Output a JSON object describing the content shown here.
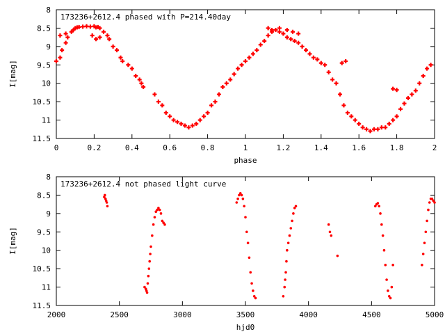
{
  "chart_data": [
    {
      "type": "scatter",
      "title": "173236+2612.4 phased with P=214.40day",
      "xlabel": "phase",
      "ylabel": "I[mag]",
      "xlim": [
        0,
        2
      ],
      "ylim": [
        11.5,
        8
      ],
      "y_inverted": true,
      "xticks": [
        "0",
        "0.2",
        "0.4",
        "0.6",
        "0.8",
        "1",
        "1.2",
        "1.4",
        "1.6",
        "1.8",
        "2"
      ],
      "yticks": [
        "8",
        "8.5",
        "9",
        "9.5",
        "10",
        "10.5",
        "11",
        "11.5"
      ],
      "grid": false,
      "color": "#ff0000",
      "marker": "plus",
      "series": [
        {
          "x": [
            0.0,
            0.02,
            0.03,
            0.05,
            0.06,
            0.08,
            0.09,
            0.1,
            0.11,
            0.12,
            0.14,
            0.16,
            0.18,
            0.2,
            0.21,
            0.22,
            0.23,
            0.25,
            0.27,
            0.28,
            0.3,
            0.32,
            0.34,
            0.35,
            0.38,
            0.4,
            0.42,
            0.44,
            0.45,
            0.46,
            0.52,
            0.54,
            0.56,
            0.58,
            0.6,
            0.62,
            0.64,
            0.66,
            0.68,
            0.7,
            0.72,
            0.74,
            0.76,
            0.78,
            0.8,
            0.82,
            0.84,
            0.86,
            0.88,
            0.9,
            0.92,
            0.94,
            0.96,
            0.98,
            1.0,
            1.02,
            1.04,
            1.06,
            1.08,
            1.1,
            1.12,
            1.14,
            1.16,
            1.18,
            1.2,
            1.22,
            1.24,
            1.26,
            1.28,
            1.3,
            1.32,
            1.34,
            1.36,
            1.38,
            1.4,
            1.42,
            1.44,
            1.46,
            1.48,
            1.5,
            1.52,
            1.54,
            1.56,
            1.58,
            1.6,
            1.62,
            1.64,
            1.66,
            1.68,
            1.7,
            1.72,
            1.74,
            1.76,
            1.78,
            1.8,
            1.82,
            1.84,
            1.86,
            1.88,
            1.9,
            1.92,
            1.94,
            1.96,
            1.98,
            1.12,
            1.14,
            1.18,
            1.22,
            1.25,
            1.28,
            0.02,
            0.05,
            0.19,
            0.21,
            0.23,
            1.51,
            1.53,
            1.78,
            1.8
          ],
          "y": [
            9.4,
            9.3,
            9.1,
            8.9,
            8.75,
            8.6,
            8.55,
            8.5,
            8.48,
            8.47,
            8.46,
            8.45,
            8.46,
            8.45,
            8.48,
            8.47,
            8.5,
            8.6,
            8.7,
            8.8,
            9.0,
            9.1,
            9.3,
            9.4,
            9.5,
            9.6,
            9.8,
            9.9,
            10.0,
            10.1,
            10.3,
            10.5,
            10.6,
            10.8,
            10.9,
            11.0,
            11.05,
            11.1,
            11.15,
            11.2,
            11.15,
            11.1,
            11.0,
            10.9,
            10.8,
            10.6,
            10.5,
            10.3,
            10.1,
            10.0,
            9.9,
            9.75,
            9.6,
            9.5,
            9.4,
            9.3,
            9.2,
            9.1,
            8.95,
            8.85,
            8.7,
            8.6,
            8.55,
            8.6,
            8.65,
            8.75,
            8.8,
            8.85,
            8.9,
            9.0,
            9.1,
            9.2,
            9.3,
            9.35,
            9.45,
            9.5,
            9.7,
            9.9,
            10.0,
            10.3,
            10.6,
            10.8,
            10.9,
            11.0,
            11.1,
            11.2,
            11.25,
            11.3,
            11.25,
            11.25,
            11.2,
            11.2,
            11.1,
            11.0,
            10.9,
            10.7,
            10.55,
            10.4,
            10.3,
            10.2,
            10.0,
            9.8,
            9.6,
            9.5,
            8.5,
            8.55,
            8.5,
            8.55,
            8.6,
            8.65,
            8.7,
            8.65,
            8.7,
            8.8,
            8.75,
            9.45,
            9.4,
            10.15,
            10.18
          ]
        }
      ]
    },
    {
      "type": "scatter",
      "title": "173236+2612.4 not phased light curve",
      "xlabel": "hjd0",
      "ylabel": "I[mag]",
      "xlim": [
        2000,
        5000
      ],
      "ylim": [
        11.5,
        8
      ],
      "y_inverted": true,
      "xticks": [
        "2000",
        "2500",
        "3000",
        "3500",
        "4000",
        "4500",
        "5000"
      ],
      "yticks": [
        "8",
        "8.5",
        "9",
        "9.5",
        "10",
        "10.5",
        "11",
        "11.5"
      ],
      "grid": false,
      "color": "#ff0000",
      "marker": "dot",
      "series": [
        {
          "x": [
            2380,
            2385,
            2390,
            2395,
            2400,
            2405,
            2700,
            2710,
            2715,
            2720,
            2725,
            2730,
            2735,
            2740,
            2745,
            2750,
            2760,
            2770,
            2780,
            2790,
            2800,
            2810,
            2820,
            2830,
            2840,
            2850,
            2860,
            3430,
            3440,
            3450,
            3460,
            3470,
            3480,
            3490,
            3500,
            3510,
            3520,
            3530,
            3540,
            3550,
            3560,
            3570,
            3580,
            3800,
            3810,
            3815,
            3820,
            3825,
            3830,
            3840,
            3850,
            3860,
            3870,
            3880,
            3890,
            3900,
            4160,
            4170,
            4180,
            4230,
            4530,
            4540,
            4550,
            4560,
            4570,
            4580,
            4590,
            4600,
            4610,
            4620,
            4630,
            4640,
            4650,
            4660,
            4670,
            4900,
            4910,
            4920,
            4930,
            4940,
            4950,
            4960,
            4970,
            4980,
            4990,
            5000
          ],
          "y": [
            8.55,
            8.5,
            8.6,
            8.65,
            8.7,
            8.8,
            11.0,
            11.05,
            11.1,
            11.15,
            10.9,
            10.7,
            10.5,
            10.3,
            10.1,
            9.9,
            9.6,
            9.3,
            9.1,
            8.95,
            8.9,
            8.85,
            8.9,
            9.0,
            9.2,
            9.25,
            9.3,
            8.7,
            8.6,
            8.5,
            8.45,
            8.5,
            8.6,
            8.8,
            9.1,
            9.5,
            9.8,
            10.2,
            10.6,
            10.9,
            11.1,
            11.25,
            11.3,
            11.25,
            11.0,
            10.8,
            10.6,
            10.3,
            10.0,
            9.8,
            9.6,
            9.4,
            9.2,
            9.0,
            8.85,
            8.8,
            9.3,
            9.5,
            9.6,
            10.15,
            8.8,
            8.75,
            8.72,
            8.8,
            9.0,
            9.3,
            9.6,
            10.0,
            10.4,
            10.8,
            11.1,
            11.25,
            11.3,
            11.0,
            10.4,
            10.4,
            10.1,
            9.8,
            9.5,
            9.2,
            8.9,
            8.7,
            8.6,
            8.6,
            8.65,
            8.7
          ]
        }
      ]
    }
  ]
}
